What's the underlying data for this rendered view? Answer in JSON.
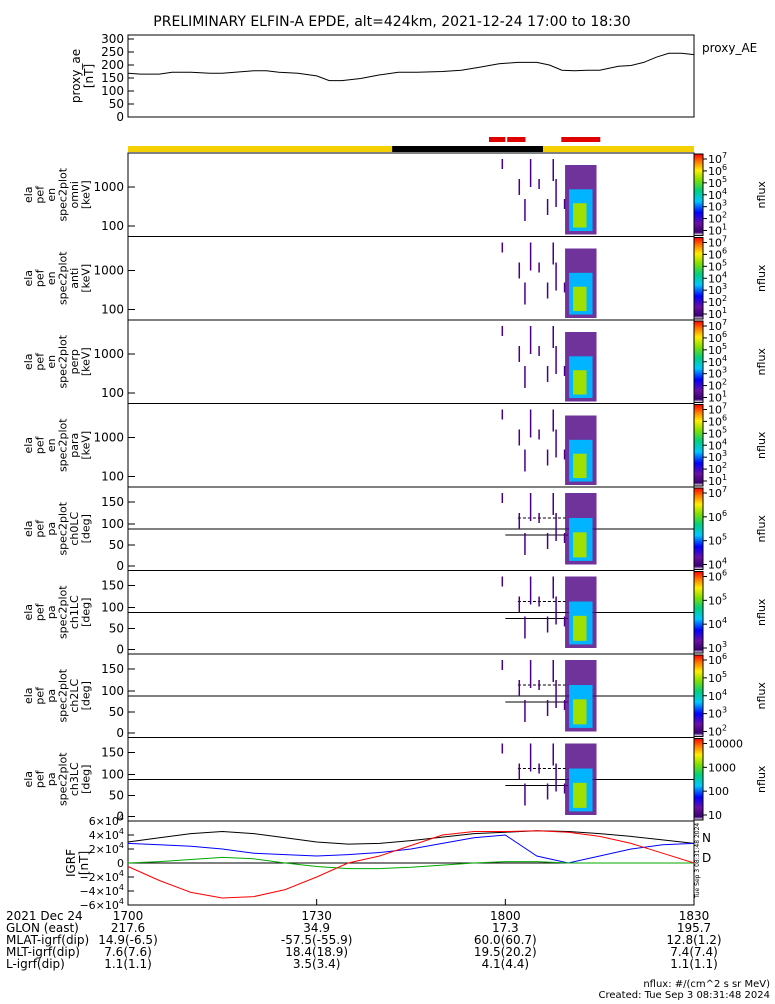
{
  "title": "PRELIMINARY ELFIN-A EPDE, alt=424km, 2021-12-24 17:00 to 18:30",
  "colors": {
    "proxy_line": "#000000",
    "bar_yellow": "#f5d000",
    "bar_black": "#000000",
    "bar_red": "#e00000",
    "bx": "#000000",
    "by": "#0000ff",
    "bz": "#00aa00",
    "bt": "#ff0000"
  },
  "time_axis": {
    "start_min": 0,
    "end_min": 90,
    "ticks": [
      {
        "min": 0,
        "label": "1700"
      },
      {
        "min": 30,
        "label": "1730"
      },
      {
        "min": 60,
        "label": "1800"
      },
      {
        "min": 90,
        "label": "1830"
      }
    ]
  },
  "bar_segments": [
    {
      "color": "yellow",
      "start": 0,
      "end": 42
    },
    {
      "color": "black",
      "start": 42,
      "end": 66
    },
    {
      "color": "yellow",
      "start": 66,
      "end": 90
    }
  ],
  "red_segments": [
    {
      "start": 57.4,
      "end": 60.0
    },
    {
      "start": 60.3,
      "end": 63.2
    },
    {
      "start": 68.9,
      "end": 75.1
    }
  ],
  "proxy_ae": {
    "label_left": "proxy_ae",
    "unit": "[nT]",
    "legend": "proxy_AE",
    "ylim": [
      0,
      300
    ],
    "tick_labels": [
      "300",
      "250",
      "200",
      "150",
      "100",
      "50",
      "0"
    ],
    "chart_data": {
      "type": "line",
      "x_unit": "minutes after 17:00",
      "x": [
        0,
        2,
        5,
        7,
        10,
        13,
        15,
        17,
        20,
        22,
        24,
        27,
        30,
        32,
        34,
        37,
        40,
        43,
        46,
        50,
        53,
        56,
        59,
        62,
        65,
        67,
        69,
        71,
        73,
        75,
        78,
        80,
        82,
        84,
        86,
        88,
        90
      ],
      "y": [
        168,
        165,
        165,
        172,
        172,
        168,
        168,
        172,
        178,
        178,
        172,
        168,
        158,
        140,
        140,
        148,
        162,
        172,
        172,
        175,
        180,
        192,
        205,
        210,
        210,
        200,
        180,
        178,
        180,
        180,
        195,
        198,
        210,
        230,
        245,
        245,
        240
      ]
    }
  },
  "spec_panels": [
    {
      "labels": [
        "ela",
        "pef",
        "en",
        "spec2plot",
        "omni",
        "[keV]"
      ],
      "type": "energy",
      "yticks": [
        "1000",
        "100"
      ],
      "cb_ticks": [
        "10^7",
        "10^6",
        "10^5",
        "10^4",
        "10^3",
        "10^2",
        "10^1"
      ],
      "cb_label": "nflux"
    },
    {
      "labels": [
        "ela",
        "pef",
        "en",
        "spec2plot",
        "anti",
        "[keV]"
      ],
      "type": "energy",
      "yticks": [
        "1000",
        "100"
      ],
      "cb_ticks": [
        "10^7",
        "10^6",
        "10^5",
        "10^4",
        "10^3",
        "10^2",
        "10^1"
      ],
      "cb_label": "nflux"
    },
    {
      "labels": [
        "ela",
        "pef",
        "en",
        "spec2plot",
        "perp",
        "[keV]"
      ],
      "type": "energy",
      "yticks": [
        "1000",
        "100"
      ],
      "cb_ticks": [
        "10^7",
        "10^6",
        "10^5",
        "10^4",
        "10^3",
        "10^2",
        "10^1"
      ],
      "cb_label": "nflux"
    },
    {
      "labels": [
        "ela",
        "pef",
        "en",
        "spec2plot",
        "para",
        "[keV]"
      ],
      "type": "energy",
      "yticks": [
        "1000",
        "100"
      ],
      "cb_ticks": [
        "10^7",
        "10^6",
        "10^5",
        "10^4",
        "10^3",
        "10^2",
        "10^1"
      ],
      "cb_label": "nflux"
    },
    {
      "labels": [
        "ela",
        "pef",
        "pa",
        "spec2plot",
        "ch0LC",
        "[deg]"
      ],
      "type": "pa",
      "yticks": [
        "150",
        "100",
        "50",
        "0"
      ],
      "cb_ticks": [
        "10^7",
        "10^6",
        "10^5",
        "10^4"
      ],
      "cb_label": "nflux"
    },
    {
      "labels": [
        "ela",
        "pef",
        "pa",
        "spec2plot",
        "ch1LC",
        "[deg]"
      ],
      "type": "pa",
      "yticks": [
        "150",
        "100",
        "50",
        "0"
      ],
      "cb_ticks": [
        "10^6",
        "10^5",
        "10^4",
        "10^3"
      ],
      "cb_label": "nflux"
    },
    {
      "labels": [
        "ela",
        "pef",
        "pa",
        "spec2plot",
        "ch2LC",
        "[deg]"
      ],
      "type": "pa",
      "yticks": [
        "150",
        "100",
        "50",
        "0"
      ],
      "cb_ticks": [
        "10^6",
        "10^5",
        "10^4",
        "10^3",
        "10^2"
      ],
      "cb_label": "nflux"
    },
    {
      "labels": [
        "ela",
        "pef",
        "pa",
        "spec2plot",
        "ch3LC",
        "[deg]"
      ],
      "type": "pa",
      "yticks": [
        "150",
        "100",
        "50",
        "0"
      ],
      "cb_ticks": [
        "10000",
        "1000",
        "100",
        "10"
      ],
      "cb_label": "nflux"
    }
  ],
  "igrf": {
    "labels": [
      "IGRF",
      "[nT]"
    ],
    "ylim": [
      -60000,
      60000
    ],
    "tick_labels": [
      "6×10^4",
      "4×10^4",
      "2×10^4",
      "0",
      "−2×10^4",
      "−4×10^4",
      "−6×10^4"
    ],
    "legend": [
      "N",
      "D"
    ],
    "chart_data": {
      "type": "line",
      "x_unit": "minutes after 17:00",
      "x": [
        0,
        5,
        10,
        15,
        20,
        25,
        30,
        35,
        40,
        45,
        50,
        55,
        60,
        65,
        70,
        75,
        80,
        85,
        90
      ],
      "series": [
        {
          "color": "bx",
          "values": [
            30000,
            36000,
            42000,
            45000,
            42000,
            36000,
            30000,
            27000,
            28000,
            32000,
            37000,
            42000,
            44000,
            46000,
            45000,
            42000,
            38000,
            33000,
            28000
          ]
        },
        {
          "color": "by",
          "values": [
            28000,
            26000,
            24000,
            20000,
            14000,
            12000,
            10000,
            12000,
            15000,
            20000,
            28000,
            36000,
            40000,
            10000,
            0,
            10000,
            20000,
            26000,
            28000
          ]
        },
        {
          "color": "bz",
          "values": [
            0,
            2000,
            5000,
            8000,
            6000,
            0,
            -5000,
            -8000,
            -8000,
            -6000,
            -3000,
            0,
            2000,
            2000,
            0,
            0,
            0,
            0,
            0
          ]
        },
        {
          "color": "bt",
          "values": [
            -5000,
            -25000,
            -42000,
            -50000,
            -48000,
            -38000,
            -20000,
            0,
            10000,
            25000,
            40000,
            45000,
            45000,
            46000,
            44000,
            38000,
            28000,
            14000,
            0
          ]
        }
      ]
    },
    "side_text": "Tue Sep  3 08:31:48 2024"
  },
  "footer_table": {
    "rows": [
      {
        "label": "2021 Dec 24",
        "values": [
          "1700",
          "1730",
          "1800",
          "1830"
        ]
      },
      {
        "label": "GLON (east)",
        "values": [
          "217.6",
          "34.9",
          "17.3",
          "195.7"
        ]
      },
      {
        "label": "MLAT-igrf(dip)",
        "values": [
          "14.9(-6.5)",
          "-57.5(-55.9)",
          "60.0(60.7)",
          "12.8(1.2)"
        ]
      },
      {
        "label": "MLT-igrf(dip)",
        "values": [
          "7.6(7.6)",
          "18.4(18.9)",
          "19.5(20.2)",
          "7.4(7.4)"
        ]
      },
      {
        "label": "L-igrf(dip)",
        "values": [
          "1.1(1.1)",
          "3.5(3.4)",
          "4.1(4.4)",
          "1.1(1.1)"
        ]
      }
    ]
  },
  "footnote_1": "nflux: #/(cm^2 s sr MeV)",
  "footnote_2": "Created: Tue Sep  3 08:31:48 2024"
}
